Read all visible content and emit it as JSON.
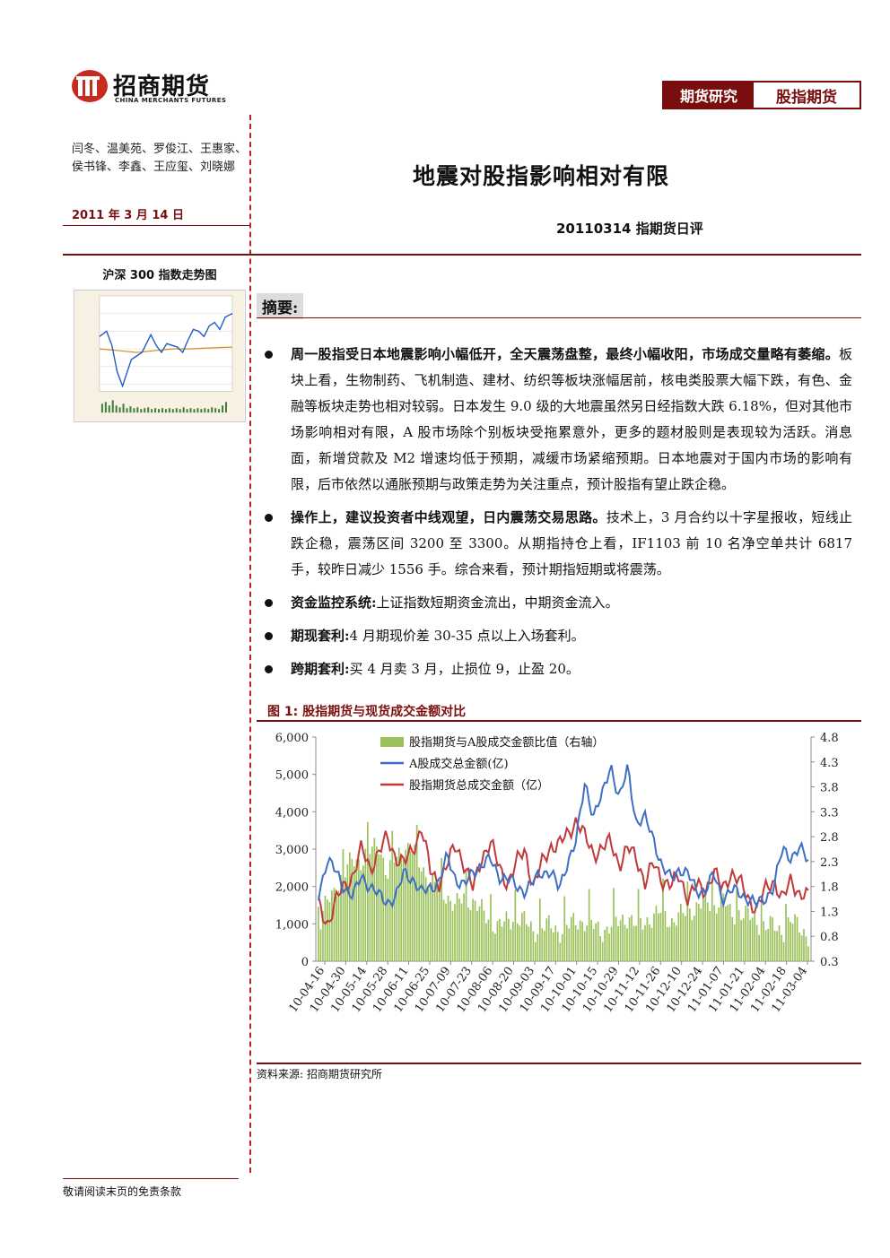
{
  "header": {
    "company_cn": "招商期货",
    "company_en": "CHINA MERCHANTS FUTURES",
    "tag_research": "期货研究",
    "tag_category": "股指期货"
  },
  "left": {
    "authors": "闫冬、温美苑、罗俊江、王惠家、侯书锋、李鑫、王应玺、刘晓娜",
    "date": "2011 年 3 月 14 日",
    "thumb_title": "沪深 300 指数走势图"
  },
  "main": {
    "title": "地震对股指影响相对有限",
    "subtitle": "20110314 指期货日评",
    "abstract_label": "摘要:",
    "bullets": [
      {
        "bold": "周一股指受日本地震影响小幅低开，全天震荡盘整，最终小幅收阳，市场成交量略有萎缩。",
        "text": "板块上看，生物制药、飞机制造、建材、纺织等板块涨幅居前，核电类股票大幅下跌，有色、金融等板块走势也相对较弱。日本发生 9.0 级的大地震虽然另日经指数大跌 6.18%，但对其他市场影响相对有限，A 股市场除个别板块受拖累意外，更多的题材股则是表现较为活跃。消息面，新增贷款及 M2 增速均低于预期，减缓市场紧缩预期。日本地震对于国内市场的影响有限，后市依然以通胀预期与政策走势为关注重点，预计股指有望止跌企稳。"
      },
      {
        "bold": "操作上，建议投资者中线观望，日内震荡交易思路。",
        "text": "技术上，3 月合约以十字星报收，短线止跌企稳，震荡区间 3200 至 3300。从期指持仓上看，IF1103 前 10 名净空单共计 6817 手，较昨日减少 1556 手。综合来看，预计期指短期或将震荡。"
      },
      {
        "bold": "资金监控系统:",
        "text": "上证指数短期资金流出，中期资金流入。"
      },
      {
        "bold": "期现套利:",
        "text": "4 月期现价差 30-35 点以上入场套利。"
      },
      {
        "bold": "跨期套利:",
        "text": "买 4 月卖 3 月，止损位 9，止盈 20。"
      }
    ],
    "figure_title": "图 1: 股指期货与现货成交金额对比",
    "source": "资料来源: 招商期货研究所"
  },
  "footer": {
    "disclaimer": "敬请阅读末页的免责条款"
  },
  "colors": {
    "brand": "#7a0d0d",
    "bar": "#9bc25a",
    "blue": "#3f6fc4",
    "red": "#c0393b"
  },
  "chart_data": {
    "type": "bar+line",
    "title": "",
    "series": [
      {
        "name": "股指期货与A股成交金额比值（右轴）",
        "kind": "bar",
        "axis": "right"
      },
      {
        "name": "A股成交总金额(亿)",
        "kind": "line",
        "axis": "left"
      },
      {
        "name": "股指期货总成交金额（亿）",
        "kind": "line",
        "axis": "left"
      }
    ],
    "x_ticks": [
      "10-04-16",
      "10-04-30",
      "10-05-14",
      "10-05-28",
      "10-06-11",
      "10-06-25",
      "10-07-09",
      "10-07-23",
      "10-08-06",
      "10-08-20",
      "10-09-03",
      "10-09-17",
      "10-10-01",
      "10-10-15",
      "10-10-29",
      "10-11-12",
      "10-11-26",
      "10-12-10",
      "10-12-24",
      "11-01-07",
      "11-01-21",
      "11-02-04",
      "11-02-18",
      "11-03-04"
    ],
    "y_left_ticks": [
      "6,000",
      "5,000",
      "4,000",
      "3,000",
      "2,000",
      "1,000",
      "0"
    ],
    "y_right_ticks": [
      "4.8",
      "4.3",
      "3.8",
      "3.3",
      "2.8",
      "2.3",
      "1.8",
      "1.3",
      "0.8",
      "0.3"
    ],
    "ylim_left": [
      0,
      6000
    ],
    "ylim_right": [
      0.3,
      4.8
    ],
    "anchors": {
      "blue": [
        1800,
        2700,
        2400,
        2000,
        1700,
        2300,
        2000,
        1750,
        1600,
        1700,
        2400,
        2200,
        1800,
        2000,
        2100,
        2800,
        2200,
        2000,
        2400,
        2600,
        2700,
        2300,
        2200,
        2000,
        1900,
        2100,
        2400,
        2400,
        1900,
        2700,
        3200,
        4800,
        3900,
        4400,
        5300,
        4300,
        5200,
        3700,
        3800,
        3300,
        2500,
        2200,
        2500,
        2300,
        1900,
        1900,
        2300,
        1700,
        1900,
        1800,
        1700,
        1500,
        1700,
        2000,
        3000,
        2800,
        3000,
        2700
      ],
      "red": [
        1500,
        1000,
        1600,
        2000,
        2300,
        3000,
        2500,
        2900,
        3300,
        2800,
        2600,
        3000,
        3600,
        2400,
        2100,
        2600,
        3100,
        2600,
        1900,
        2800,
        3200,
        2500,
        2100,
        2600,
        3000,
        2000,
        2600,
        3100,
        3100,
        3400,
        3800,
        3300,
        2900,
        3000,
        3200,
        2600,
        3000,
        2800,
        2100,
        2600,
        2200,
        2000,
        2300,
        1700,
        2000,
        1900,
        2400,
        1900,
        2400,
        2100,
        1700,
        1400,
        1900,
        2200,
        1600,
        2200,
        1800,
        1700
      ],
      "bar": [
        0.9,
        1.5,
        1.8,
        2.0,
        2.4,
        2.3,
        2.5,
        2.7,
        2.0,
        2.4,
        2.6,
        2.5,
        2.2,
        1.9,
        1.8,
        1.6,
        1.4,
        1.6,
        1.5,
        1.3,
        1.1,
        1.0,
        1.1,
        1.2,
        1.1,
        0.9,
        1.0,
        1.0,
        0.9,
        1.0,
        1.1,
        1.1,
        1.0,
        0.9,
        1.0,
        1.1,
        1.2,
        1.0,
        1.1,
        1.2,
        1.3,
        1.1,
        1.2,
        1.3,
        1.4,
        1.5,
        1.4,
        1.6,
        1.2,
        1.3,
        1.2,
        1.1,
        1.0,
        1.0,
        0.9,
        1.1,
        1.0,
        0.8
      ]
    }
  }
}
